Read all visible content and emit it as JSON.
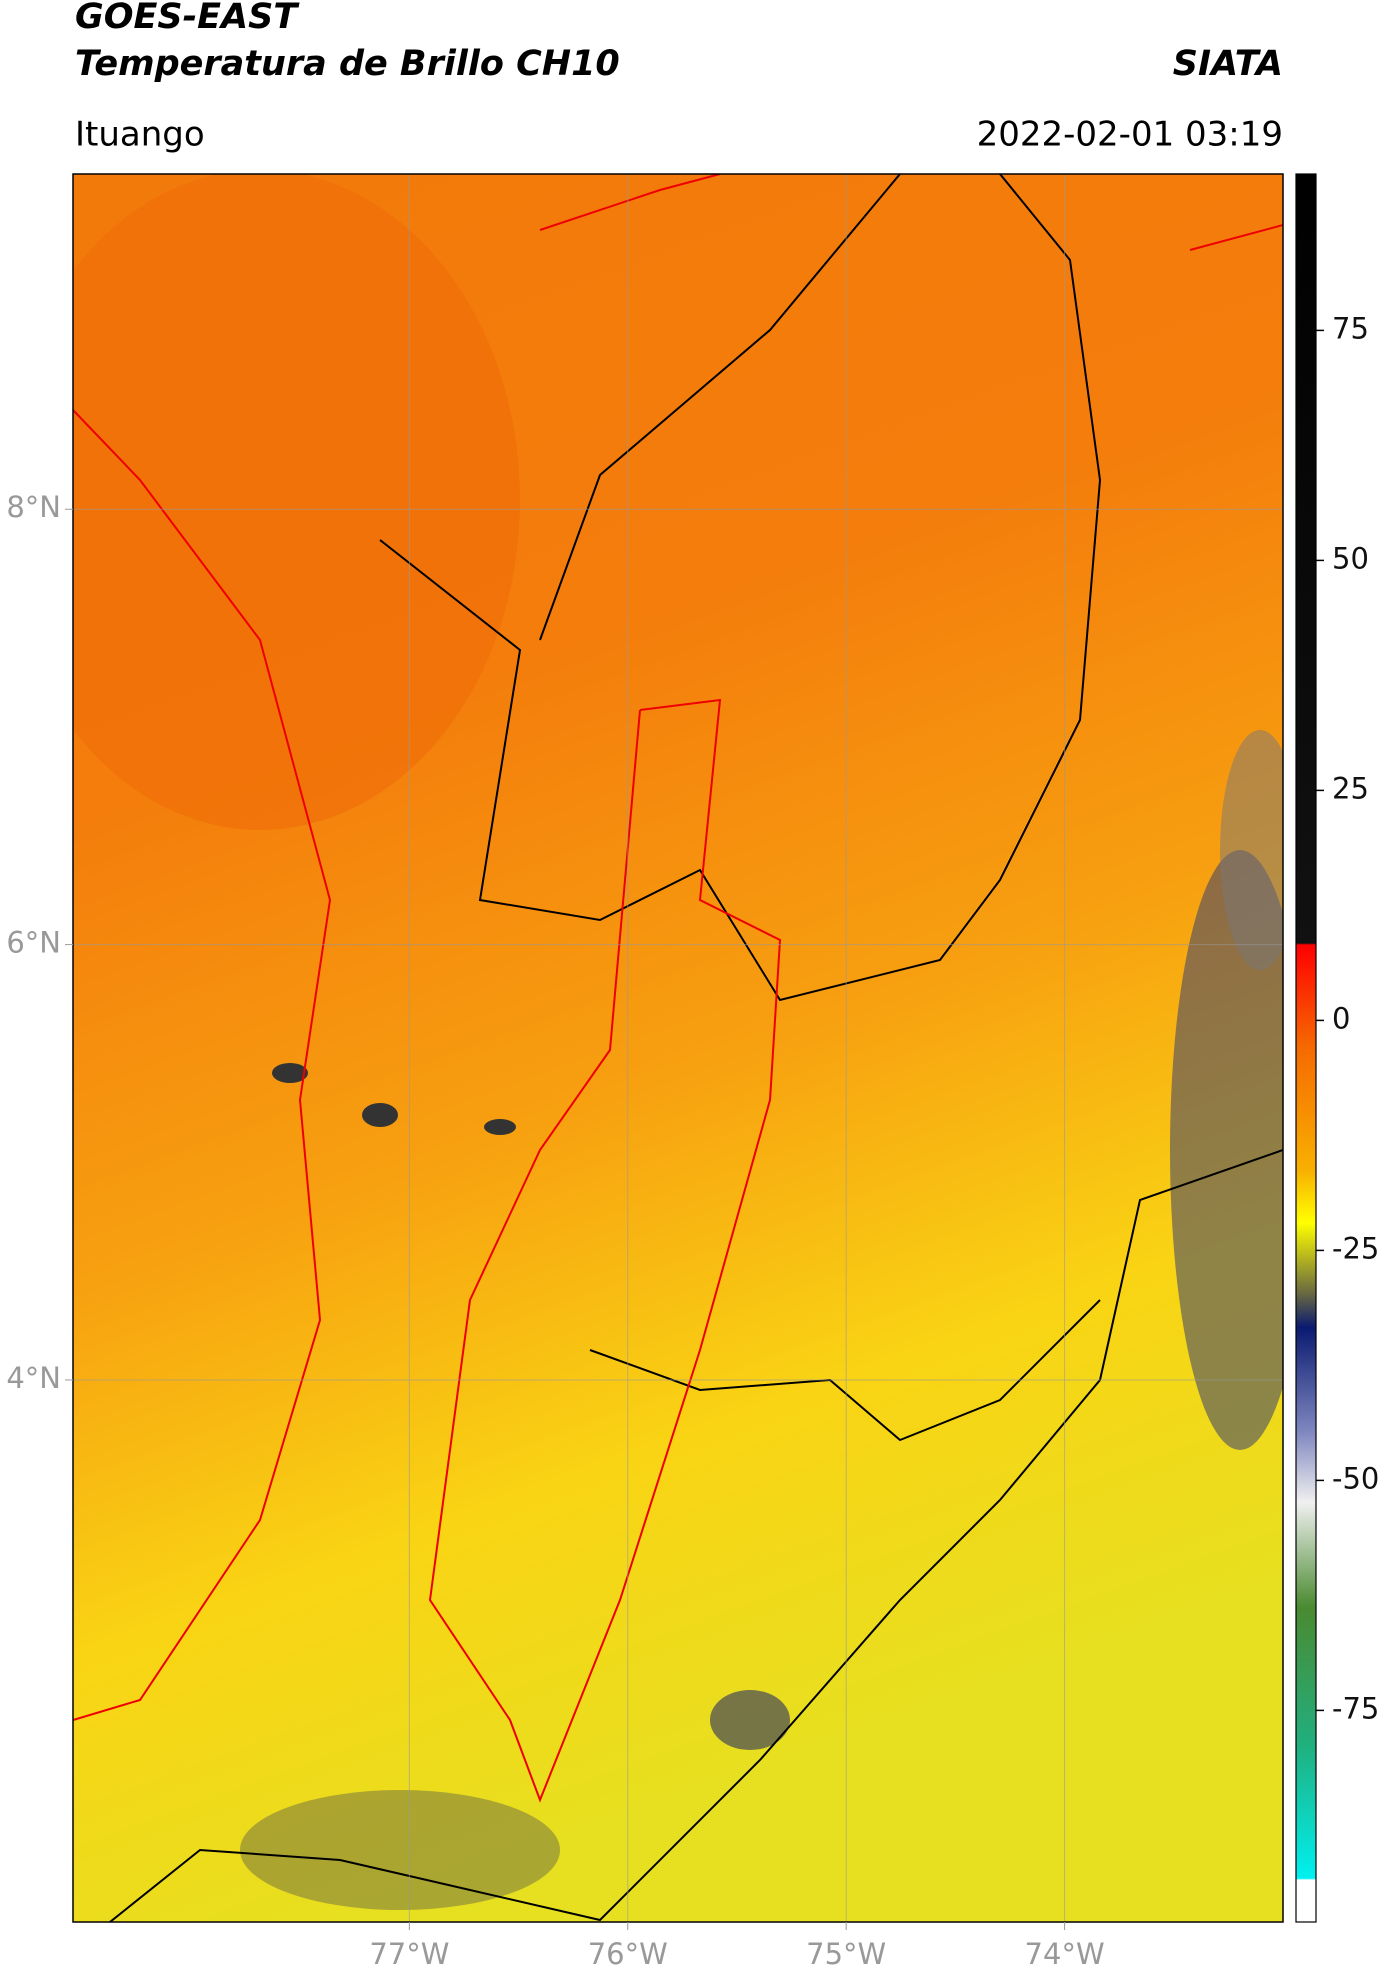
{
  "header": {
    "title": "GOES-EAST",
    "subtitle": "Temperatura de Brillo CH10",
    "source": "SIATA",
    "location": "Ituango",
    "datetime": "2022-02-01 03:19"
  },
  "map": {
    "xlim": [
      -78.54,
      -73.0
    ],
    "ylim": [
      1.51,
      9.54
    ],
    "xticks": [
      {
        "value": -77,
        "label": "77°W"
      },
      {
        "value": -76,
        "label": "76°W"
      },
      {
        "value": -75,
        "label": "75°W"
      },
      {
        "value": -74,
        "label": "74°W"
      }
    ],
    "yticks": [
      {
        "value": 8,
        "label": "8°N"
      },
      {
        "value": 6,
        "label": "6°N"
      },
      {
        "value": 4,
        "label": "4°N"
      }
    ],
    "grid": true
  },
  "colorbar": {
    "lim": [
      -98,
      92
    ],
    "ticks": [
      75,
      50,
      25,
      0,
      -25,
      -50,
      -75
    ]
  }
}
